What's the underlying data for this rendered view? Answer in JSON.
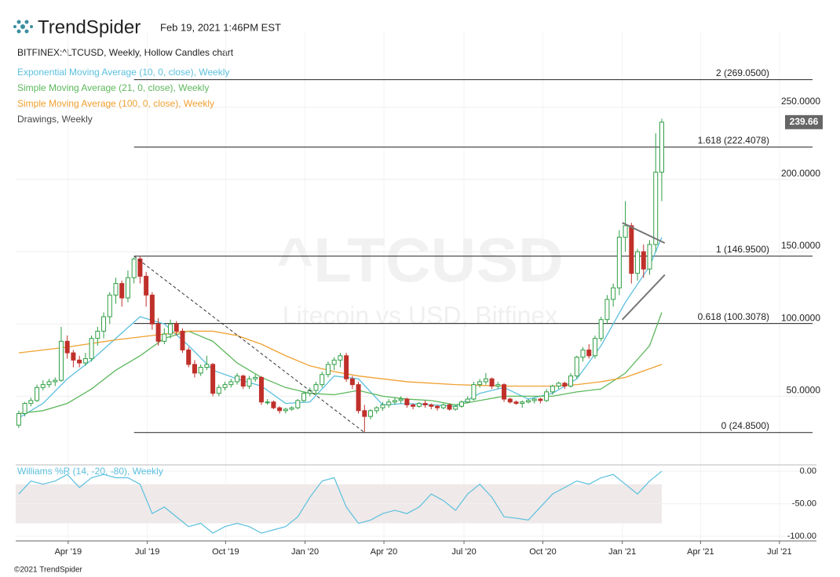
{
  "header": {
    "brand": "TrendSpider",
    "timestamp": "Feb 19, 2021 1:46PM EST"
  },
  "footer": "©2021 TrendSpider",
  "chart_data": [
    {
      "type": "candlestick",
      "title": "BITFINEX:^LTCUSD, Weekly, Hollow Candles chart",
      "watermark": "^LTCUSD",
      "watermark_subtitle": "Litecoin vs USD, Bitfinex",
      "up_color": "#2f9e44",
      "down_color": "#c0302a",
      "xlim": [
        -0.5,
        131.5
      ],
      "xticks": [
        {
          "value": 8.15,
          "label": "Apr '19"
        },
        {
          "value": 21.2,
          "label": "Jul '19"
        },
        {
          "value": 34.1,
          "label": "Oct '19"
        },
        {
          "value": 47.2,
          "label": "Jan '20"
        },
        {
          "value": 60.2,
          "label": "Apr '20"
        },
        {
          "value": 73.4,
          "label": "Jul '20"
        },
        {
          "value": 86.4,
          "label": "Oct '20"
        },
        {
          "value": 99.5,
          "label": "Jan '21"
        },
        {
          "value": 112.4,
          "label": "Apr '21"
        },
        {
          "value": 125.4,
          "label": "Jul '21"
        }
      ],
      "ylim": [
        3,
        302.5
      ],
      "yticks": [
        {
          "value": 50,
          "label": "50.0000"
        },
        {
          "value": 100,
          "label": "100.0000"
        },
        {
          "value": 150,
          "label": "150.0000"
        },
        {
          "value": 200,
          "label": "200.0000"
        },
        {
          "value": 250,
          "label": "250.0000"
        }
      ],
      "ohlc": [
        [
          30,
          40,
          28,
          38
        ],
        [
          38,
          46,
          36,
          45
        ],
        [
          45,
          49,
          43,
          47
        ],
        [
          47,
          58,
          46,
          56
        ],
        [
          56,
          61,
          54,
          58
        ],
        [
          58,
          62,
          56,
          60
        ],
        [
          60,
          63,
          57,
          61
        ],
        [
          61,
          98,
          60,
          88
        ],
        [
          88,
          92,
          76,
          80
        ],
        [
          80,
          82,
          70,
          75
        ],
        [
          75,
          78,
          70,
          73
        ],
        [
          73,
          80,
          71,
          76
        ],
        [
          76,
          92,
          74,
          90
        ],
        [
          90,
          98,
          85,
          95
        ],
        [
          95,
          108,
          90,
          105
        ],
        [
          105,
          122,
          100,
          120
        ],
        [
          120,
          132,
          114,
          128
        ],
        [
          128,
          130,
          112,
          118
        ],
        [
          118,
          137,
          115,
          132
        ],
        [
          132,
          146,
          128,
          145
        ],
        [
          145,
          147,
          128,
          133
        ],
        [
          133,
          136,
          112,
          120
        ],
        [
          120,
          122,
          96,
          100
        ],
        [
          100,
          104,
          85,
          88
        ],
        [
          88,
          97,
          86,
          93
        ],
        [
          93,
          103,
          90,
          100
        ],
        [
          100,
          102,
          92,
          95
        ],
        [
          95,
          97,
          80,
          82
        ],
        [
          82,
          84,
          70,
          72
        ],
        [
          72,
          75,
          63,
          66
        ],
        [
          66,
          72,
          64,
          70
        ],
        [
          70,
          78,
          68,
          72
        ],
        [
          72,
          73,
          50,
          52
        ],
        [
          52,
          58,
          50,
          56
        ],
        [
          56,
          60,
          54,
          58
        ],
        [
          58,
          62,
          56,
          60
        ],
        [
          60,
          66,
          58,
          64
        ],
        [
          64,
          65,
          55,
          57
        ],
        [
          57,
          64,
          55,
          62
        ],
        [
          62,
          65,
          60,
          63
        ],
        [
          63,
          64,
          44,
          46
        ],
        [
          46,
          48,
          44,
          46
        ],
        [
          46,
          47,
          41,
          42
        ],
        [
          42,
          43,
          38,
          40
        ],
        [
          40,
          42,
          38,
          41
        ],
        [
          41,
          43,
          40,
          42
        ],
        [
          42,
          48,
          41,
          47
        ],
        [
          47,
          53,
          46,
          52
        ],
        [
          52,
          56,
          50,
          54
        ],
        [
          54,
          60,
          52,
          58
        ],
        [
          58,
          67,
          56,
          65
        ],
        [
          65,
          74,
          63,
          72
        ],
        [
          72,
          77,
          68,
          75
        ],
        [
          75,
          80,
          70,
          78
        ],
        [
          78,
          80,
          60,
          62
        ],
        [
          62,
          64,
          55,
          58
        ],
        [
          58,
          60,
          38,
          40
        ],
        [
          40,
          44,
          25,
          36
        ],
        [
          36,
          41,
          34,
          40
        ],
        [
          40,
          43,
          38,
          42
        ],
        [
          42,
          46,
          40,
          44
        ],
        [
          44,
          48,
          42,
          46
        ],
        [
          46,
          49,
          44,
          47
        ],
        [
          47,
          50,
          45,
          48
        ],
        [
          48,
          49,
          42,
          44
        ],
        [
          44,
          45,
          41,
          43
        ],
        [
          43,
          46,
          42,
          45
        ],
        [
          45,
          47,
          42,
          44
        ],
        [
          44,
          45,
          41,
          43
        ],
        [
          43,
          44,
          40,
          42
        ],
        [
          42,
          45,
          41,
          44
        ],
        [
          44,
          45,
          40,
          41
        ],
        [
          41,
          44,
          40,
          43
        ],
        [
          43,
          47,
          42,
          46
        ],
        [
          46,
          50,
          45,
          48
        ],
        [
          48,
          60,
          47,
          58
        ],
        [
          58,
          62,
          56,
          60
        ],
        [
          60,
          66,
          58,
          62
        ],
        [
          62,
          63,
          55,
          57
        ],
        [
          57,
          60,
          55,
          58
        ],
        [
          58,
          59,
          46,
          48
        ],
        [
          48,
          49,
          45,
          46
        ],
        [
          46,
          47,
          44,
          45
        ],
        [
          45,
          47,
          42,
          46
        ],
        [
          46,
          48,
          45,
          47
        ],
        [
          47,
          49,
          45,
          48
        ],
        [
          48,
          49,
          45,
          47
        ],
        [
          47,
          55,
          46,
          53
        ],
        [
          53,
          58,
          51,
          57
        ],
        [
          57,
          60,
          55,
          59
        ],
        [
          59,
          60,
          55,
          57
        ],
        [
          57,
          66,
          56,
          64
        ],
        [
          64,
          78,
          62,
          77
        ],
        [
          77,
          84,
          74,
          82
        ],
        [
          82,
          86,
          76,
          78
        ],
        [
          78,
          92,
          76,
          90
        ],
        [
          90,
          105,
          88,
          103
        ],
        [
          103,
          120,
          100,
          117
        ],
        [
          117,
          128,
          112,
          125
        ],
        [
          125,
          165,
          120,
          160
        ],
        [
          160,
          185,
          150,
          168
        ],
        [
          168,
          170,
          128,
          135
        ],
        [
          135,
          152,
          130,
          150
        ],
        [
          150,
          155,
          132,
          138
        ],
        [
          138,
          158,
          134,
          155
        ],
        [
          155,
          232,
          150,
          205
        ],
        [
          205,
          242,
          185,
          239.66
        ]
      ],
      "series": [
        {
          "name": "Exponential Moving Average (10, 0, close), Weekly",
          "color": "#5bc0de",
          "x": [
            0,
            4,
            8,
            12,
            16,
            20,
            24,
            28,
            32,
            36,
            40,
            44,
            48,
            52,
            56,
            60,
            64,
            68,
            72,
            76,
            80,
            84,
            88,
            92,
            96,
            100,
            104,
            106
          ],
          "values": [
            35,
            45,
            62,
            75,
            90,
            105,
            100,
            85,
            68,
            62,
            57,
            45,
            46,
            64,
            62,
            44,
            45,
            44,
            43,
            52,
            56,
            48,
            52,
            62,
            85,
            115,
            140,
            160
          ]
        },
        {
          "name": "Simple Moving Average (21, 0, close), Weekly",
          "color": "#5cb85c",
          "x": [
            0,
            4,
            8,
            12,
            16,
            20,
            24,
            28,
            32,
            36,
            40,
            44,
            48,
            52,
            56,
            60,
            64,
            68,
            72,
            76,
            80,
            84,
            88,
            92,
            96,
            100,
            104,
            106
          ],
          "values": [
            38,
            40,
            45,
            55,
            68,
            78,
            90,
            95,
            88,
            73,
            63,
            56,
            52,
            51,
            54,
            50,
            48,
            47,
            44,
            47,
            50,
            50,
            50,
            53,
            55,
            66,
            85,
            108
          ]
        },
        {
          "name": "Simple Moving Average (100, 0, close), Weekly",
          "color": "#f0a030",
          "x": [
            0,
            8,
            16,
            24,
            28,
            32,
            36,
            40,
            44,
            48,
            52,
            56,
            64,
            72,
            80,
            88,
            92,
            96,
            100,
            104,
            106
          ],
          "values": [
            80,
            84,
            89,
            93,
            95,
            95,
            92,
            86,
            78,
            71,
            67,
            64,
            60,
            58,
            57,
            57,
            58,
            60,
            63,
            69,
            72
          ]
        }
      ],
      "drawings_label": "Drawings, Weekly",
      "levels_start": 19,
      "levels": [
        {
          "label": "2 (269.0500)",
          "value": 269.05
        },
        {
          "label": "1.618 (222.4078)",
          "value": 222.4078
        },
        {
          "label": "1 (146.9500)",
          "value": 146.95
        },
        {
          "label": "0.618 (100.3078)",
          "value": 100.3078
        },
        {
          "label": "0 (24.8500)",
          "value": 24.85
        }
      ],
      "drawings": [
        {
          "x": [
            19,
            57
          ],
          "values": [
            146.95,
            24.85
          ],
          "color": "#333",
          "dashed": true
        },
        {
          "x": [
            99.5,
            106.5
          ],
          "values": [
            170,
            156
          ],
          "color": "#777",
          "dashed": false
        },
        {
          "x": [
            99.5,
            106.5
          ],
          "values": [
            103,
            134
          ],
          "color": "#777",
          "dashed": false
        }
      ]
    },
    {
      "type": "line",
      "ylim": [
        -107,
        8.5
      ],
      "yticks": [
        {
          "value": 0,
          "label": "0.00"
        },
        {
          "value": -50,
          "label": "-50.00"
        },
        {
          "value": -100,
          "label": "-100.00"
        }
      ],
      "band": [
        -20,
        -80
      ],
      "series": [
        {
          "name": "Williams %R (14, -20, -80), Weekly",
          "color": "#5bc0de",
          "x": [
            0,
            2,
            4,
            6,
            8,
            10,
            12,
            14,
            16,
            18,
            20,
            22,
            24,
            26,
            28,
            30,
            32,
            34,
            36,
            38,
            40,
            42,
            44,
            46,
            48,
            50,
            52,
            54,
            56,
            58,
            60,
            62,
            64,
            66,
            68,
            70,
            72,
            74,
            76,
            78,
            80,
            82,
            84,
            86,
            88,
            90,
            92,
            94,
            96,
            98,
            100,
            102,
            104,
            106
          ],
          "values": [
            -35,
            -15,
            -20,
            -15,
            -5,
            -25,
            -10,
            -5,
            -10,
            -10,
            -20,
            -65,
            -55,
            -70,
            -85,
            -80,
            -95,
            -85,
            -80,
            -85,
            -95,
            -90,
            -85,
            -70,
            -40,
            -15,
            -10,
            -55,
            -80,
            -75,
            -65,
            -60,
            -65,
            -55,
            -35,
            -45,
            -60,
            -35,
            -20,
            -40,
            -70,
            -72,
            -75,
            -55,
            -35,
            -25,
            -15,
            -20,
            -10,
            -5,
            -20,
            -35,
            -15,
            0
          ]
        }
      ]
    }
  ]
}
